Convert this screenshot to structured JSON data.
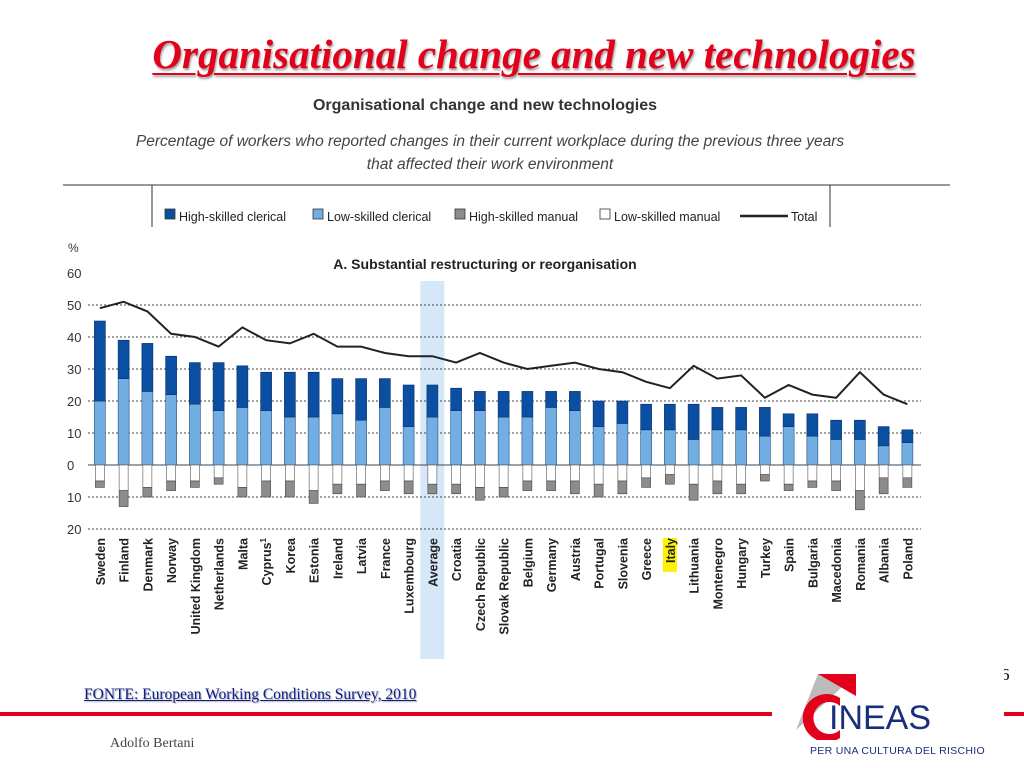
{
  "slide": {
    "title": "Organisational change and new technologies",
    "source": "FONTE: European Working Conditions Survey, 2010",
    "page_number": "6",
    "author": "Adolfo Bertani"
  },
  "logo": {
    "name": "INEAS",
    "tagline": "PER UNA CULTURA DEL RISCHIO",
    "colors": {
      "red": "#e3001b",
      "grey": "#bbbbbb",
      "blue": "#1a2f7a"
    }
  },
  "colors": {
    "accent_red": "#e3001b",
    "high_skilled_clerical": "#0b4fa3",
    "low_skilled_clerical": "#73aee2",
    "high_skilled_manual": "#8c8c8c",
    "low_skilled_manual": "#ffffff",
    "total_line": "#222222",
    "average_highlight": "#d6e7f7",
    "italy_highlight": "#fff200"
  },
  "chart_data": {
    "type": "bar",
    "title": "Organisational change and new technologies",
    "subtitle_lines": [
      "Percentage of workers who reported changes in their current workplace during the previous three years",
      "that affected their work environment"
    ],
    "panel_title": "A. Substantial restructuring or reorganisation",
    "ylabel": "%",
    "ylim": [
      -20,
      60
    ],
    "y_ticks": [
      {
        "value": 60,
        "label": "60"
      },
      {
        "value": 50,
        "label": "50"
      },
      {
        "value": 40,
        "label": "40"
      },
      {
        "value": 30,
        "label": "30"
      },
      {
        "value": 20,
        "label": "20"
      },
      {
        "value": 10,
        "label": "10"
      },
      {
        "value": 0,
        "label": "0"
      },
      {
        "value": -10,
        "label": "10"
      },
      {
        "value": -20,
        "label": "20"
      }
    ],
    "grid": "dotted horizontal",
    "legend_position": "top",
    "legend": [
      {
        "label": "High-skilled clerical",
        "swatch": "high_skilled_clerical"
      },
      {
        "label": "Low-skilled clerical",
        "swatch": "low_skilled_clerical"
      },
      {
        "label": "High-skilled manual",
        "swatch": "high_skilled_manual"
      },
      {
        "label": "Low-skilled manual",
        "swatch": "low_skilled_manual"
      },
      {
        "label": "Total",
        "swatch": "total_line"
      }
    ],
    "categories": [
      "Sweden",
      "Finland",
      "Denmark",
      "Norway",
      "United Kingdom",
      "Netherlands",
      "Malta",
      "Cyprus",
      "Korea",
      "Estonia",
      "Ireland",
      "Latvia",
      "France",
      "Luxembourg",
      "Average",
      "Croatia",
      "Czech Republic",
      "Slovak Republic",
      "Belgium",
      "Germany",
      "Austria",
      "Portugal",
      "Slovenia",
      "Greece",
      "Italy",
      "Lithuania",
      "Montenegro",
      "Hungary",
      "Turkey",
      "Spain",
      "Bulgaria",
      "Macedonia",
      "Romania",
      "Albania",
      "Poland"
    ],
    "category_superscripts": {
      "Cyprus": "1"
    },
    "highlighted_categories": {
      "Average": "average_highlight",
      "Italy": "italy_highlight"
    },
    "series": [
      {
        "name": "Low-skilled clerical",
        "stack": "positive",
        "values": [
          20,
          27,
          23,
          22,
          19,
          17,
          18,
          17,
          15,
          15,
          16,
          14,
          18,
          12,
          15,
          17,
          17,
          15,
          15,
          18,
          17,
          12,
          13,
          11,
          11,
          8,
          11,
          11,
          9,
          12,
          9,
          8,
          8,
          6,
          7
        ]
      },
      {
        "name": "High-skilled clerical",
        "stack": "positive",
        "values": [
          25,
          12,
          15,
          12,
          13,
          15,
          13,
          12,
          14,
          14,
          11,
          13,
          9,
          13,
          10,
          7,
          6,
          8,
          8,
          5,
          6,
          8,
          7,
          8,
          8,
          11,
          7,
          7,
          9,
          4,
          7,
          6,
          6,
          6,
          4
        ]
      },
      {
        "name": "Low-skilled manual",
        "stack": "negative",
        "values": [
          5,
          8,
          7,
          5,
          5,
          4,
          7,
          5,
          5,
          8,
          6,
          6,
          5,
          5,
          6,
          6,
          7,
          7,
          5,
          5,
          5,
          6,
          5,
          4,
          3,
          6,
          5,
          6,
          3,
          6,
          5,
          5,
          8,
          4,
          4
        ]
      },
      {
        "name": "High-skilled manual",
        "stack": "negative",
        "values": [
          2,
          5,
          3,
          3,
          2,
          2,
          3,
          5,
          5,
          4,
          3,
          4,
          3,
          4,
          3,
          3,
          4,
          3,
          3,
          3,
          4,
          4,
          4,
          3,
          3,
          5,
          4,
          3,
          2,
          2,
          2,
          3,
          6,
          5,
          3
        ]
      },
      {
        "name": "Total",
        "type": "line",
        "values": [
          49,
          51,
          48,
          41,
          40,
          37,
          43,
          39,
          38,
          41,
          37,
          37,
          35,
          34,
          34,
          32,
          35,
          32,
          30,
          31,
          32,
          30,
          29,
          26,
          24,
          31,
          27,
          28,
          21,
          25,
          22,
          21,
          29,
          22,
          19
        ]
      }
    ]
  }
}
